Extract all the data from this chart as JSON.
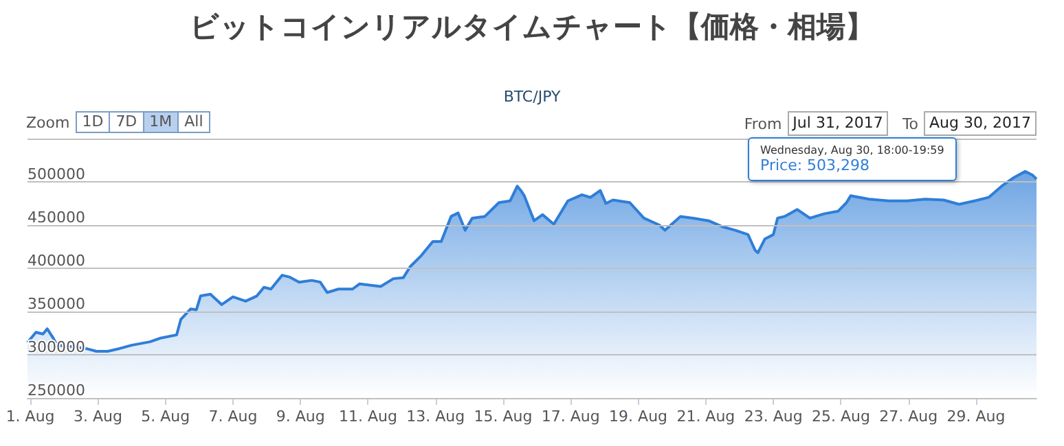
{
  "chart_data": {
    "type": "area",
    "title": "ビットコインリアルタイムチャート【価格・相場】",
    "subtitle": "BTC/JPY",
    "x": [
      "2017-07-31T22:00",
      "2017-08-01T04:00",
      "2017-08-01T09:00",
      "2017-08-01T12:00",
      "2017-08-01T16:00",
      "2017-08-01T19:00",
      "2017-08-02T03:00",
      "2017-08-02T16:00",
      "2017-08-02T23:00",
      "2017-08-03T07:00",
      "2017-08-03T15:00",
      "2017-08-04T00:00",
      "2017-08-04T13:00",
      "2017-08-04T20:00",
      "2017-08-05T08:00",
      "2017-08-05T11:00",
      "2017-08-05T18:00",
      "2017-08-05T22:00",
      "2017-08-06T01:00",
      "2017-08-06T08:00",
      "2017-08-06T16:00",
      "2017-08-07T00:00",
      "2017-08-07T09:00",
      "2017-08-07T17:00",
      "2017-08-07T22:00",
      "2017-08-08T03:00",
      "2017-08-08T11:00",
      "2017-08-08T16:00",
      "2017-08-08T23:00",
      "2017-08-09T08:00",
      "2017-08-09T14:00",
      "2017-08-09T19:00",
      "2017-08-10T03:00",
      "2017-08-10T13:00",
      "2017-08-10T18:00",
      "2017-08-11T09:00",
      "2017-08-11T18:00",
      "2017-08-12T01:00",
      "2017-08-12T06:00",
      "2017-08-12T14:00",
      "2017-08-12T22:00",
      "2017-08-13T04:00",
      "2017-08-13T11:00",
      "2017-08-13T16:00",
      "2017-08-13T21:00",
      "2017-08-14T02:00",
      "2017-08-14T11:00",
      "2017-08-14T21:00",
      "2017-08-15T05:00",
      "2017-08-15T10:00",
      "2017-08-15T13:00",
      "2017-08-15T15:00",
      "2017-08-15T22:00",
      "2017-08-16T04:00",
      "2017-08-16T12:00",
      "2017-08-16T22:00",
      "2017-08-17T08:00",
      "2017-08-17T14:00",
      "2017-08-17T21:00",
      "2017-08-18T01:00",
      "2017-08-18T06:00",
      "2017-08-18T18:00",
      "2017-08-19T04:00",
      "2017-08-19T15:00",
      "2017-08-19T19:00",
      "2017-08-20T06:00",
      "2017-08-20T15:00",
      "2017-08-21T02:00",
      "2017-08-21T12:00",
      "2017-08-21T21:00",
      "2017-08-22T06:00",
      "2017-08-22T11:00",
      "2017-08-22T13:00",
      "2017-08-22T18:00",
      "2017-08-23T00:00",
      "2017-08-23T03:00",
      "2017-08-23T08:00",
      "2017-08-23T17:00",
      "2017-08-24T02:00",
      "2017-08-24T12:00",
      "2017-08-24T22:00",
      "2017-08-25T04:00",
      "2017-08-25T07:00",
      "2017-08-25T20:00",
      "2017-08-26T10:00",
      "2017-08-26T23:00",
      "2017-08-27T12:00",
      "2017-08-28T01:00",
      "2017-08-28T12:00",
      "2017-08-28T23:00",
      "2017-08-29T09:00",
      "2017-08-29T19:00",
      "2017-08-30T03:00",
      "2017-08-30T11:00",
      "2017-08-30T16:00",
      "2017-08-30T19:00"
    ],
    "series": [
      {
        "color": "#2f7ed8",
        "values": [
          314000,
          326000,
          324000,
          330000,
          320000,
          311000,
          310000,
          307000,
          304000,
          304000,
          307000,
          311000,
          315000,
          319000,
          323000,
          341000,
          353000,
          352000,
          368000,
          370000,
          358000,
          367000,
          362000,
          368000,
          378000,
          376000,
          392000,
          390000,
          384000,
          386000,
          384000,
          372000,
          376000,
          376000,
          382000,
          379000,
          388000,
          389000,
          402000,
          415000,
          431000,
          431000,
          460000,
          464000,
          444000,
          458000,
          460000,
          476000,
          478000,
          495000,
          489000,
          484000,
          455000,
          462000,
          451000,
          478000,
          485000,
          482000,
          490000,
          475000,
          479000,
          476000,
          458000,
          450000,
          444000,
          460000,
          458000,
          455000,
          448000,
          444000,
          439000,
          421000,
          418000,
          434000,
          439000,
          458000,
          460000,
          468000,
          458000,
          463000,
          466000,
          476000,
          484000,
          480000,
          478000,
          478000,
          480000,
          479000,
          474000,
          478000,
          482000,
          496000,
          505000,
          512000,
          508000,
          503298
        ]
      }
    ],
    "xlim": [
      "2017-07-31T22:00",
      "2017-08-30T19:00"
    ],
    "xticks": [
      {
        "value": "2017-08-01",
        "label": "1. Aug"
      },
      {
        "value": "2017-08-03",
        "label": "3. Aug"
      },
      {
        "value": "2017-08-05",
        "label": "5. Aug"
      },
      {
        "value": "2017-08-07",
        "label": "7. Aug"
      },
      {
        "value": "2017-08-09",
        "label": "9. Aug"
      },
      {
        "value": "2017-08-11",
        "label": "11. Aug"
      },
      {
        "value": "2017-08-13",
        "label": "13. Aug"
      },
      {
        "value": "2017-08-15",
        "label": "15. Aug"
      },
      {
        "value": "2017-08-17",
        "label": "17. Aug"
      },
      {
        "value": "2017-08-19",
        "label": "19. Aug"
      },
      {
        "value": "2017-08-21",
        "label": "21. Aug"
      },
      {
        "value": "2017-08-23",
        "label": "23. Aug"
      },
      {
        "value": "2017-08-25",
        "label": "25. Aug"
      },
      {
        "value": "2017-08-27",
        "label": "27. Aug"
      },
      {
        "value": "2017-08-29",
        "label": "29. Aug"
      }
    ],
    "ylim": [
      250000,
      550000
    ],
    "yticks": [
      250000,
      300000,
      350000,
      400000,
      450000,
      500000,
      {
        "value": 550000,
        "label": null
      }
    ],
    "grid": "y",
    "annotations": [
      "Zoom",
      "1D",
      "7D",
      "1M",
      "All",
      "From",
      "Jul 31, 2017",
      "To",
      "Aug 30, 2017",
      "Wednesday, Aug 30, 18:00-19:59\nPrice: 503,298"
    ]
  }
}
